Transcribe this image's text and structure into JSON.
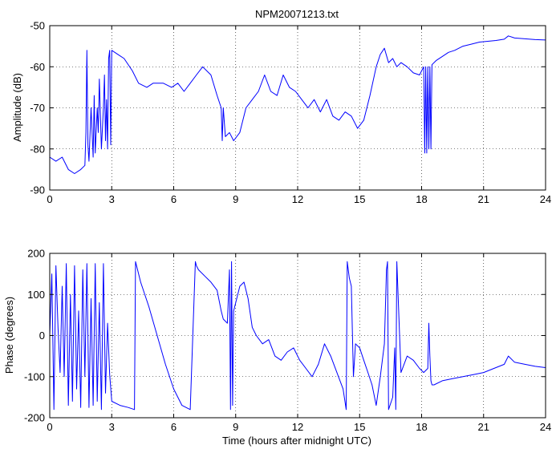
{
  "chart_data": [
    {
      "type": "line",
      "title": "NPM20071213.txt",
      "xlabel": "",
      "ylabel": "Amplitude (dB)",
      "xlim": [
        0,
        24
      ],
      "ylim": [
        -90,
        -50
      ],
      "xticks": [
        "0",
        "3",
        "6",
        "9",
        "12",
        "15",
        "18",
        "21",
        "24"
      ],
      "yticks": [
        "-90",
        "-80",
        "-70",
        "-60",
        "-50"
      ],
      "grid": true,
      "line_color": "#0000ff",
      "series": [
        {
          "x": [
            0,
            0.3,
            0.6,
            0.9,
            1.2,
            1.5,
            1.7,
            1.75,
            1.8,
            1.85,
            1.9,
            2.0,
            2.1,
            2.15,
            2.2,
            2.3,
            2.35,
            2.4,
            2.5,
            2.6,
            2.65,
            2.7,
            2.75,
            2.8,
            2.85,
            2.9,
            2.95,
            3.0,
            3.3,
            3.6,
            4.0,
            4.3,
            4.7,
            5.0,
            5.5,
            5.9,
            6.2,
            6.5,
            6.8,
            7.1,
            7.4,
            7.8,
            8.1,
            8.3,
            8.35,
            8.4,
            8.5,
            8.7,
            8.9,
            9.2,
            9.5,
            9.8,
            10.1,
            10.4,
            10.7,
            11.0,
            11.3,
            11.6,
            11.9,
            12.2,
            12.5,
            12.8,
            13.1,
            13.4,
            13.7,
            14.0,
            14.3,
            14.6,
            14.9,
            15.2,
            15.5,
            15.8,
            16.0,
            16.2,
            16.4,
            16.6,
            16.8,
            17.0,
            17.3,
            17.6,
            17.9,
            18.0,
            18.1,
            18.15,
            18.2,
            18.25,
            18.3,
            18.35,
            18.4,
            18.45,
            18.5,
            18.7,
            19.0,
            19.3,
            19.6,
            20.0,
            20.4,
            20.8,
            21.2,
            21.6,
            22.0,
            22.2,
            22.5,
            23.0,
            23.5,
            24.0
          ],
          "y": [
            -82,
            -83,
            -82,
            -85,
            -86,
            -85,
            -84,
            -76,
            -56,
            -79,
            -83,
            -70,
            -82,
            -67,
            -81,
            -70,
            -76,
            -63,
            -80,
            -70,
            -62,
            -78,
            -68,
            -80,
            -58,
            -56,
            -79,
            -56,
            -57,
            -58,
            -61,
            -64,
            -65,
            -64,
            -64,
            -65,
            -64,
            -66,
            -64,
            -62,
            -60,
            -62,
            -67,
            -70,
            -78,
            -70,
            -77,
            -76,
            -78,
            -76,
            -70,
            -68,
            -66,
            -62,
            -66,
            -67,
            -62,
            -65,
            -66,
            -68,
            -70,
            -68,
            -71,
            -68,
            -72,
            -73,
            -71,
            -72,
            -75,
            -73,
            -67,
            -60,
            -57,
            -55.5,
            -59,
            -58,
            -60,
            -59,
            -60,
            -61.5,
            -62,
            -61,
            -60,
            -81,
            -60,
            -81,
            -60,
            -80,
            -60,
            -80,
            -59.5,
            -58.5,
            -57.5,
            -56.5,
            -56,
            -55,
            -54.5,
            -54,
            -53.8,
            -53.6,
            -53.3,
            -52.5,
            -53,
            -53.2,
            -53.4,
            -53.5
          ]
        }
      ]
    },
    {
      "type": "line",
      "title": "",
      "xlabel": "Time (hours after midnight UTC)",
      "ylabel": "Phase (degrees)",
      "xlim": [
        0,
        24
      ],
      "ylim": [
        -200,
        200
      ],
      "xticks": [
        "0",
        "3",
        "6",
        "9",
        "12",
        "15",
        "18",
        "21",
        "24"
      ],
      "yticks": [
        "-200",
        "-100",
        "0",
        "100",
        "200"
      ],
      "grid": true,
      "line_color": "#0000ff",
      "series": [
        {
          "x": [
            0,
            0.1,
            0.2,
            0.3,
            0.4,
            0.5,
            0.6,
            0.7,
            0.8,
            0.9,
            1.0,
            1.1,
            1.2,
            1.3,
            1.4,
            1.5,
            1.6,
            1.7,
            1.8,
            1.9,
            2.0,
            2.1,
            2.2,
            2.3,
            2.4,
            2.5,
            2.6,
            2.7,
            2.8,
            2.9,
            3.0,
            3.4,
            3.8,
            4.1,
            4.15,
            4.2,
            4.4,
            4.8,
            5.2,
            5.6,
            6.0,
            6.4,
            6.8,
            7.05,
            7.1,
            7.2,
            7.5,
            7.8,
            8.1,
            8.3,
            8.4,
            8.6,
            8.7,
            8.75,
            8.8,
            8.85,
            8.9,
            9.0,
            9.2,
            9.4,
            9.6,
            9.8,
            10.0,
            10.3,
            10.6,
            10.9,
            11.2,
            11.5,
            11.8,
            12.1,
            12.4,
            12.7,
            13.0,
            13.3,
            13.6,
            13.9,
            14.2,
            14.35,
            14.4,
            14.5,
            14.6,
            14.7,
            14.8,
            15.0,
            15.2,
            15.4,
            15.6,
            15.8,
            16.0,
            16.2,
            16.3,
            16.35,
            16.4,
            16.6,
            16.7,
            16.75,
            16.8,
            17.0,
            17.3,
            17.6,
            17.9,
            18.1,
            18.3,
            18.35,
            18.4,
            18.45,
            18.5,
            18.6,
            19.0,
            19.5,
            20.0,
            20.5,
            21.0,
            21.5,
            22.0,
            22.2,
            22.5,
            23.0,
            23.5,
            24.0
          ],
          "y": [
            0,
            150,
            -180,
            170,
            20,
            -90,
            120,
            -100,
            175,
            -170,
            100,
            -160,
            170,
            -130,
            60,
            -175,
            160,
            -100,
            175,
            -175,
            90,
            -170,
            175,
            -160,
            80,
            -180,
            175,
            -140,
            30,
            -95,
            -160,
            -170,
            -175,
            -180,
            180,
            170,
            130,
            70,
            0,
            -70,
            -130,
            -170,
            -180,
            180,
            170,
            160,
            145,
            130,
            110,
            60,
            40,
            30,
            160,
            -180,
            180,
            -170,
            60,
            80,
            120,
            130,
            90,
            20,
            0,
            -20,
            -10,
            -50,
            -60,
            -40,
            -30,
            -60,
            -80,
            -100,
            -70,
            -20,
            -50,
            -90,
            -130,
            -180,
            180,
            140,
            120,
            -100,
            -20,
            -30,
            -60,
            -90,
            -120,
            -170,
            -100,
            -20,
            160,
            180,
            -180,
            -150,
            -30,
            -180,
            180,
            -90,
            -50,
            -60,
            -80,
            -90,
            -80,
            30,
            -50,
            -110,
            -120,
            -120,
            -110,
            -105,
            -100,
            -95,
            -90,
            -80,
            -70,
            -50,
            -65,
            -70,
            -75,
            -78
          ]
        }
      ]
    }
  ]
}
